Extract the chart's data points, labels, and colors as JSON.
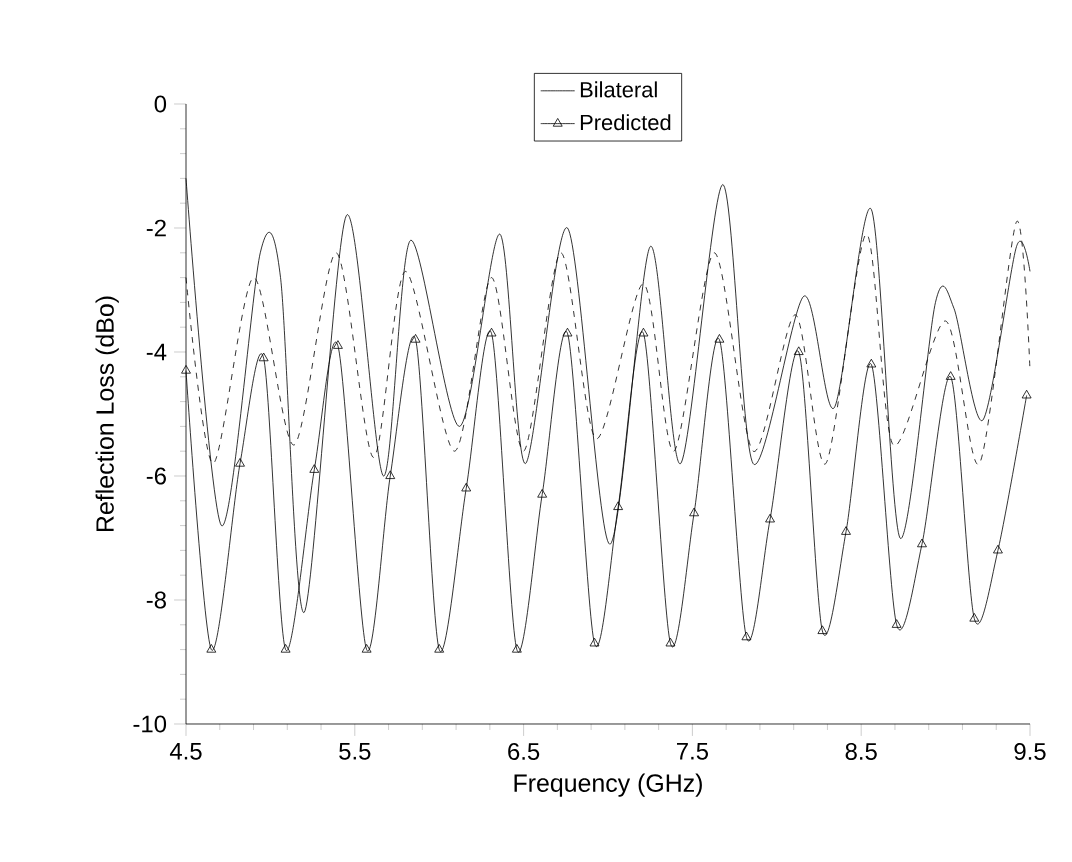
{
  "chart_data": {
    "type": "line",
    "xlabel": "Frequency (GHz)",
    "ylabel": "Reflection Loss (dBo)",
    "xlim": [
      4.5,
      9.5
    ],
    "ylim": [
      -10,
      0
    ],
    "xticks": [
      4.5,
      5.5,
      6.5,
      7.5,
      8.5,
      9.5
    ],
    "yticks": [
      -10,
      -8,
      -6,
      -4,
      -2,
      0
    ],
    "legend": "top",
    "grid": false,
    "series": [
      {
        "name": "Bilateral",
        "color": "#000000",
        "line_style": "solid",
        "x": [
          4.5,
          4.71,
          4.94,
          5.06,
          5.2,
          5.45,
          5.67,
          5.83,
          6.12,
          6.36,
          6.51,
          6.76,
          7.01,
          7.25,
          7.43,
          7.68,
          7.86,
          8.16,
          8.34,
          8.56,
          8.73,
          8.94,
          9.05,
          9.22,
          9.42,
          9.5
        ],
        "values": [
          -1.2,
          -6.8,
          -2.4,
          -2.8,
          -8.2,
          -1.8,
          -6.0,
          -2.2,
          -5.2,
          -2.1,
          -5.8,
          -2.0,
          -7.1,
          -2.3,
          -5.8,
          -1.3,
          -5.8,
          -3.1,
          -4.9,
          -1.7,
          -7.0,
          -3.2,
          -3.3,
          -5.1,
          -2.3,
          -2.7
        ]
      },
      {
        "color": "#000000",
        "line_style": "dashed",
        "x": [
          4.5,
          4.66,
          4.9,
          5.14,
          5.39,
          5.61,
          5.8,
          6.09,
          6.31,
          6.5,
          6.72,
          6.93,
          7.21,
          7.39,
          7.63,
          7.86,
          8.11,
          8.29,
          8.53,
          8.69,
          9.0,
          9.2,
          9.42,
          9.5
        ],
        "values": [
          -2.8,
          -5.8,
          -2.8,
          -5.5,
          -2.4,
          -5.7,
          -2.7,
          -5.6,
          -2.8,
          -5.6,
          -2.4,
          -5.4,
          -2.9,
          -5.6,
          -2.4,
          -5.6,
          -3.4,
          -5.8,
          -2.1,
          -5.5,
          -3.5,
          -5.8,
          -1.9,
          -4.3
        ]
      },
      {
        "name": "Predicted",
        "color": "#000000",
        "line_style": "solid",
        "marker": "triangle",
        "x": [
          4.5,
          4.65,
          4.82,
          4.96,
          5.09,
          5.26,
          5.4,
          5.57,
          5.71,
          5.86,
          6.0,
          6.16,
          6.31,
          6.46,
          6.61,
          6.76,
          6.92,
          7.06,
          7.21,
          7.37,
          7.51,
          7.66,
          7.82,
          7.96,
          8.13,
          8.27,
          8.41,
          8.56,
          8.71,
          8.86,
          9.03,
          9.17,
          9.31,
          9.48
        ],
        "values": [
          -4.3,
          -8.8,
          -5.8,
          -4.1,
          -8.8,
          -5.9,
          -3.9,
          -8.8,
          -6.0,
          -3.8,
          -8.8,
          -6.2,
          -3.7,
          -8.8,
          -6.3,
          -3.7,
          -8.7,
          -6.5,
          -3.7,
          -8.7,
          -6.6,
          -3.8,
          -8.6,
          -6.7,
          -4.0,
          -8.5,
          -6.9,
          -4.2,
          -8.4,
          -7.1,
          -4.4,
          -8.3,
          -7.2,
          -4.7
        ]
      }
    ]
  }
}
